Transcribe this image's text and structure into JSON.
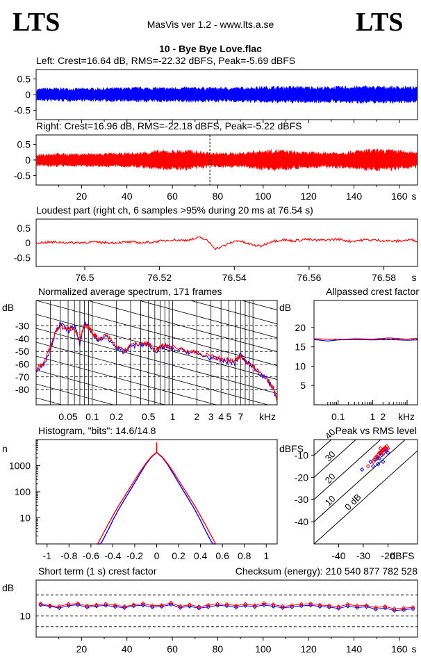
{
  "header": {
    "logo_left": "LTS",
    "logo_right": "LTS",
    "app": "MasVis ver 1.2 - www.lts.a.se",
    "title": "10 - Bye Bye Love.flac"
  },
  "colors": {
    "left": "#0000ff",
    "right": "#ff0000",
    "axis": "#000000"
  },
  "chart_data": [
    {
      "type": "area",
      "title": "Left: Crest=16.64 dB, RMS=-22.32 dBFS, Peak=-5.69 dBFS",
      "ylim": [
        -0.8,
        0.8
      ],
      "yticks": [
        "0.5",
        "0",
        "-0.5"
      ],
      "duration_s": 168,
      "envelope": [
        0.2,
        0.22,
        0.22,
        0.22,
        0.21,
        0.22,
        0.22,
        0.23,
        0.23,
        0.24,
        0.25,
        0.24,
        0.24,
        0.24,
        0.25,
        0.25,
        0.25,
        0.24,
        0.24,
        0.24,
        0.25,
        0.26,
        0.27,
        0.28,
        0.27,
        0.28,
        0.27,
        0.27,
        0.26,
        0.27,
        0.28,
        0.28,
        0.29,
        0.28,
        0.28,
        0.28,
        0.27,
        0.25
      ]
    },
    {
      "type": "area",
      "title": "Right: Crest=16.96 dB, RMS=-22.18 dBFS, Peak=-5.22 dBFS",
      "ylim": [
        -0.8,
        0.8
      ],
      "yticks": [
        "0.5",
        "0",
        "-0.5"
      ],
      "xticks": [
        "20",
        "40",
        "60",
        "80",
        "100",
        "120",
        "140",
        "160"
      ],
      "xunit": "s",
      "duration_s": 168,
      "marker_s": 76.54,
      "envelope": [
        0.2,
        0.22,
        0.22,
        0.22,
        0.21,
        0.22,
        0.22,
        0.23,
        0.23,
        0.24,
        0.25,
        0.3,
        0.32,
        0.32,
        0.33,
        0.33,
        0.28,
        0.24,
        0.24,
        0.24,
        0.25,
        0.3,
        0.33,
        0.35,
        0.33,
        0.3,
        0.27,
        0.27,
        0.26,
        0.27,
        0.28,
        0.32,
        0.35,
        0.36,
        0.35,
        0.34,
        0.3,
        0.25
      ]
    },
    {
      "type": "line",
      "title": "Loudest part (right ch, 6 samples >95% during 20 ms at 76.54 s)",
      "ylim": [
        -0.8,
        0.8
      ],
      "xlim": [
        76.487,
        76.589
      ],
      "yticks": [
        "0.5",
        "0",
        "-0.5"
      ],
      "xticks": [
        "76.5",
        "76.52",
        "76.54",
        "76.56",
        "76.58"
      ],
      "xunit": "s",
      "x": [
        76.487,
        76.492,
        76.497,
        76.502,
        76.507,
        76.512,
        76.516,
        76.52,
        76.523,
        76.526,
        76.529,
        76.531,
        76.533,
        76.535,
        76.537,
        76.539,
        76.541,
        76.544,
        76.547,
        76.55,
        76.553,
        76.556,
        76.559,
        76.562,
        76.565,
        76.568,
        76.571,
        76.575,
        76.579,
        76.583,
        76.587,
        76.589
      ],
      "y": [
        0.0,
        0.02,
        0.0,
        0.02,
        0.0,
        0.02,
        0.0,
        0.05,
        0.1,
        0.08,
        0.12,
        0.18,
        0.05,
        -0.2,
        -0.12,
        0.0,
        0.08,
        -0.05,
        -0.12,
        0.05,
        0.1,
        0.06,
        0.12,
        0.08,
        0.1,
        0.12,
        0.05,
        0.1,
        0.08,
        0.05,
        0.1,
        0.06
      ]
    },
    {
      "type": "line",
      "title": "Normalized average spectrum, 171 frames",
      "ylabel": "dB",
      "ylim": [
        -92,
        -10
      ],
      "xscale": "log",
      "xlim": [
        0.02,
        20
      ],
      "yticks": [
        "-30",
        "-40",
        "-50",
        "-60",
        "-70",
        "-80"
      ],
      "xticks": [
        "0.05",
        "0.1",
        "0.2",
        "0.5",
        "1",
        "2",
        "3",
        "4",
        "5",
        "7"
      ],
      "xunit": "kHz",
      "x": [
        0.02,
        0.025,
        0.03,
        0.035,
        0.04,
        0.05,
        0.06,
        0.07,
        0.08,
        0.09,
        0.1,
        0.12,
        0.15,
        0.2,
        0.25,
        0.3,
        0.4,
        0.5,
        0.6,
        0.7,
        0.8,
        1,
        1.5,
        2,
        3,
        4,
        5,
        6,
        7,
        8,
        10,
        12,
        15,
        18,
        20
      ],
      "series": [
        {
          "name": "",
          "y": [
            -65,
            -60,
            -48,
            -35,
            -28,
            -34,
            -30,
            -44,
            -28,
            -30,
            -36,
            -42,
            -38,
            -48,
            -50,
            -46,
            -45,
            -44,
            -50,
            -48,
            -46,
            -48,
            -50,
            -52,
            -55,
            -57,
            -58,
            -59,
            -52,
            -58,
            -62,
            -67,
            -72,
            -80,
            -90
          ]
        },
        {
          "name": "",
          "y": [
            -64,
            -59,
            -47,
            -34,
            -30,
            -33,
            -31,
            -42,
            -30,
            -31,
            -35,
            -40,
            -37,
            -46,
            -49,
            -45,
            -44,
            -44,
            -49,
            -47,
            -45,
            -47,
            -49,
            -51,
            -54,
            -56,
            -57,
            -58,
            -54,
            -57,
            -61,
            -66,
            -71,
            -79,
            -89
          ]
        }
      ]
    },
    {
      "type": "line",
      "title": "Allpassed crest factor",
      "ylabel": "dB",
      "ylim": [
        0,
        27
      ],
      "xscale": "log",
      "xlim": [
        0.02,
        20
      ],
      "yticks": [
        "20",
        "15",
        "10",
        "5"
      ],
      "xticks": [
        "0.1",
        "1",
        "2"
      ],
      "xunit": "kHz",
      "x": [
        0.02,
        0.05,
        0.1,
        0.3,
        1,
        3,
        10,
        20
      ],
      "series": [
        {
          "name": "",
          "y": [
            16.9,
            16.5,
            16.8,
            16.9,
            16.8,
            16.9,
            16.7,
            16.8
          ]
        },
        {
          "name": "",
          "y": [
            17.1,
            17.0,
            16.9,
            17.1,
            17.0,
            17.3,
            17.0,
            17.2
          ]
        }
      ]
    },
    {
      "type": "bar",
      "title": "Histogram, \"bits\": 14.6/14.8",
      "ylabel": "n",
      "yscale": "log",
      "yticks": [
        "1000",
        "100",
        "10"
      ],
      "xticks": [
        "-1",
        "-0.8",
        "-0.6",
        "-0.4",
        "-0.2",
        "0",
        "0.2",
        "0.4",
        "0.6",
        "0.8",
        "1"
      ],
      "xlim": [
        -1.1,
        1.1
      ],
      "x": [
        -0.55,
        -0.5,
        -0.45,
        -0.4,
        -0.35,
        -0.3,
        -0.25,
        -0.2,
        -0.15,
        -0.1,
        -0.05,
        0,
        0.05,
        0.1,
        0.15,
        0.2,
        0.25,
        0.3,
        0.35,
        0.4,
        0.45,
        0.5,
        0.55
      ],
      "series": [
        {
          "name": "",
          "y": [
            0.6,
            1.2,
            3,
            8,
            20,
            45,
            100,
            220,
            500,
            1100,
            2100,
            3200,
            2100,
            1100,
            500,
            220,
            100,
            45,
            20,
            8,
            3,
            1.2,
            0.6
          ]
        },
        {
          "name": "",
          "y": [
            0.8,
            2,
            5,
            12,
            28,
            60,
            130,
            280,
            600,
            1200,
            2200,
            3300,
            2200,
            1200,
            600,
            280,
            130,
            60,
            28,
            12,
            5,
            2,
            0.8
          ]
        }
      ]
    },
    {
      "type": "scatter",
      "title": "Peak vs RMS level",
      "ylabel": "dBFS",
      "xlabel": "dBFS",
      "xlim": [
        -50,
        -8
      ],
      "ylim": [
        -50,
        -3
      ],
      "xticks": [
        "-40",
        "-30",
        "-20"
      ],
      "yticks": [
        "-10",
        "-20",
        "-30",
        "-40"
      ],
      "crest_lines": [
        "0 dB",
        "10",
        "20",
        "30",
        "40"
      ],
      "series": [
        {
          "name": "",
          "x": [
            -30.5,
            -27,
            -25,
            -24,
            -23,
            -22.5,
            -22,
            -21.5,
            -21,
            -20.5,
            -24,
            -22,
            -20,
            -26,
            -23.5
          ],
          "y": [
            -16.5,
            -13,
            -12,
            -11,
            -9,
            -10,
            -8,
            -8.5,
            -7,
            -7.5,
            -14,
            -13,
            -9,
            -15,
            -11.5
          ]
        },
        {
          "name": "",
          "x": [
            -28,
            -26,
            -25,
            -24,
            -23.5,
            -23,
            -22.5,
            -22,
            -21.5,
            -21,
            -20.5,
            -20,
            -25.5,
            -24.5,
            -22,
            -21,
            -23
          ],
          "y": [
            -15,
            -13,
            -11,
            -10,
            -9,
            -8.5,
            -8,
            -7.5,
            -7,
            -6.5,
            -6,
            -7,
            -12,
            -10.5,
            -9.5,
            -8,
            -7
          ]
        }
      ]
    },
    {
      "type": "line",
      "title": "Short term (1 s) crest factor",
      "ylabel": "dB",
      "checksum_label": "Checksum (energy):",
      "checksum_value": "210 540 877 782 528",
      "xlim": [
        0,
        168
      ],
      "ylim": [
        0,
        27
      ],
      "yticks": [
        "10"
      ],
      "xticks": [
        "20",
        "40",
        "60",
        "80",
        "100",
        "120",
        "140",
        "160"
      ],
      "xunit": "s",
      "series": [
        {
          "name": "",
          "y": [
            15.2,
            14.6,
            13.8,
            14.9,
            15.3,
            14.1,
            14.7,
            15.0,
            14.4,
            13.9,
            14.8,
            15.1,
            14.2,
            14.5,
            15.4,
            14.0,
            14.6,
            13.7,
            14.3,
            15.0,
            14.8,
            14.1,
            14.9,
            14.4,
            15.2,
            14.6,
            13.9,
            14.3,
            14.8,
            15.1,
            14.5,
            14.2,
            13.6,
            14.7,
            14.0,
            14.4,
            13.2,
            13.8,
            12.6,
            12.9,
            13.4
          ]
        },
        {
          "name": "",
          "y": [
            15.8,
            14.9,
            14.6,
            15.6,
            15.9,
            14.8,
            15.2,
            15.7,
            15.1,
            14.5,
            15.3,
            15.9,
            14.9,
            15.0,
            16.2,
            14.6,
            15.3,
            14.4,
            15.1,
            15.7,
            15.5,
            14.9,
            15.6,
            15.0,
            16.0,
            15.4,
            14.6,
            15.0,
            15.6,
            15.8,
            15.2,
            14.9,
            14.4,
            15.5,
            14.8,
            15.0,
            14.0,
            14.5,
            13.4,
            13.7,
            14.1
          ]
        }
      ]
    }
  ]
}
